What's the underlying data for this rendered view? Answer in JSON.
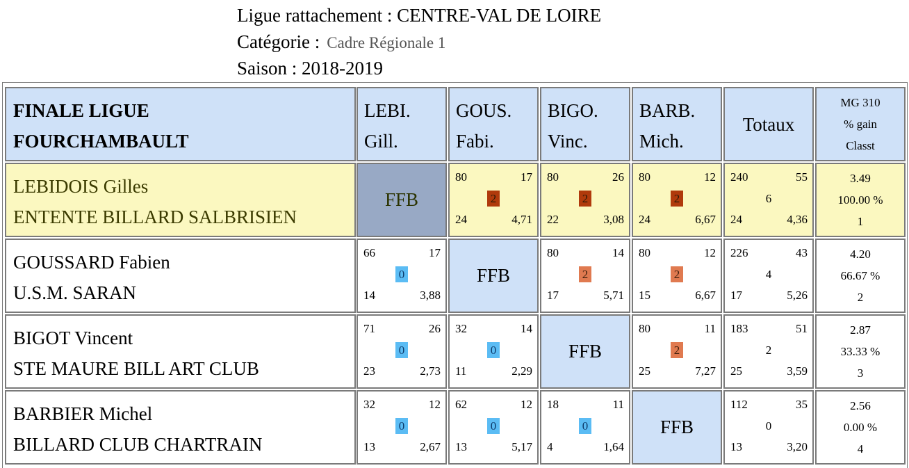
{
  "header": {
    "ligue_label": "Ligue rattachement : ",
    "ligue_value": "CENTRE-VAL DE LOIRE",
    "categorie_label": "Catégorie :",
    "categorie_value": "Cadre Régionale 1",
    "saison": "Saison : 2018-2019"
  },
  "table": {
    "title_line1": "FINALE LIGUE",
    "title_line2": "FOURCHAMBAULT",
    "columns": [
      {
        "l1": "LEBI.",
        "l2": "Gill."
      },
      {
        "l1": "GOUS.",
        "l2": "Fabi."
      },
      {
        "l1": "BIGO.",
        "l2": "Vinc."
      },
      {
        "l1": "BARB.",
        "l2": "Mich."
      }
    ],
    "totaux_label": "Totaux",
    "mg_label": "MG 310",
    "gain_label": "% gain",
    "classt_label": "Classt",
    "ffb_label": "FFB",
    "players": [
      {
        "name": "LEBIDOIS Gilles",
        "club": "ENTENTE BILLARD SALBRISIEN",
        "matches": [
          null,
          {
            "pts": "80",
            "serie": "17",
            "res": "2",
            "rep": "24",
            "moy": "4,71"
          },
          {
            "pts": "80",
            "serie": "26",
            "res": "2",
            "rep": "22",
            "moy": "3,08"
          },
          {
            "pts": "80",
            "serie": "12",
            "res": "2",
            "rep": "24",
            "moy": "6,67"
          }
        ],
        "totals": {
          "pts": "240",
          "serie": "55",
          "res": "6",
          "rep": "24",
          "moy": "4,36"
        },
        "mg": "3.49",
        "gain": "100.00 %",
        "classt": "1"
      },
      {
        "name": "GOUSSARD Fabien",
        "club": "U.S.M. SARAN",
        "matches": [
          {
            "pts": "66",
            "serie": "17",
            "res": "0",
            "rep": "14",
            "moy": "3,88"
          },
          null,
          {
            "pts": "80",
            "serie": "14",
            "res": "2",
            "rep": "17",
            "moy": "5,71"
          },
          {
            "pts": "80",
            "serie": "12",
            "res": "2",
            "rep": "15",
            "moy": "6,67"
          }
        ],
        "totals": {
          "pts": "226",
          "serie": "43",
          "res": "4",
          "rep": "17",
          "moy": "5,26"
        },
        "mg": "4.20",
        "gain": "66.67 %",
        "classt": "2"
      },
      {
        "name": "BIGOT Vincent",
        "club": "STE MAURE BILL ART CLUB",
        "matches": [
          {
            "pts": "71",
            "serie": "26",
            "res": "0",
            "rep": "23",
            "moy": "2,73"
          },
          {
            "pts": "32",
            "serie": "14",
            "res": "0",
            "rep": "11",
            "moy": "2,29"
          },
          null,
          {
            "pts": "80",
            "serie": "11",
            "res": "2",
            "rep": "25",
            "moy": "7,27"
          }
        ],
        "totals": {
          "pts": "183",
          "serie": "51",
          "res": "2",
          "rep": "25",
          "moy": "3,59"
        },
        "mg": "2.87",
        "gain": "33.33 %",
        "classt": "3"
      },
      {
        "name": "BARBIER Michel",
        "club": "BILLARD CLUB CHARTRAIN",
        "matches": [
          {
            "pts": "32",
            "serie": "12",
            "res": "0",
            "rep": "13",
            "moy": "2,67"
          },
          {
            "pts": "62",
            "serie": "12",
            "res": "0",
            "rep": "13",
            "moy": "5,17"
          },
          {
            "pts": "18",
            "serie": "11",
            "res": "0",
            "rep": "4",
            "moy": "1,64"
          },
          null
        ],
        "totals": {
          "pts": "112",
          "serie": "35",
          "res": "0",
          "rep": "13",
          "moy": "3,20"
        },
        "mg": "2.56",
        "gain": "0.00 %",
        "classt": "4"
      }
    ]
  },
  "colors": {
    "header_bg": "#cfe1f8",
    "leader_bg": "#fbf8c0",
    "ffb_leader_bg": "#98a9c5",
    "win_dark": "#b03a0c",
    "win": "#e07a50",
    "loss": "#5bbcf4"
  }
}
